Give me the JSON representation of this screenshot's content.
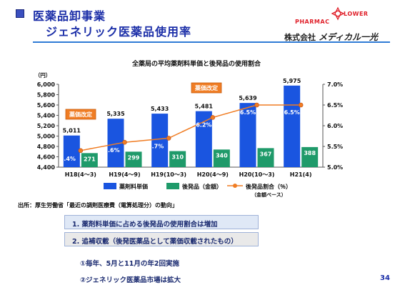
{
  "header": {
    "title": "医薬品卸事業",
    "subtitle": "ジェネリック医薬品使用率",
    "logo_left": "PHARMAC",
    "logo_right": "LOWER",
    "company_prefix": "株式会社",
    "company_name": "メディカル一光"
  },
  "chart_data": {
    "type": "bar",
    "title": "全薬局の平均薬剤料単価と後発品の使用割合",
    "y_unit_label": "（円）",
    "categories": [
      "H18(4～3)",
      "H19(4～9)",
      "H19(10～3)",
      "H20(4～9)",
      "H20(10～3)",
      "H21(4)"
    ],
    "ylim_left": [
      4400,
      6000
    ],
    "left_ticks": [
      "6,000",
      "5,800",
      "5,600",
      "5,400",
      "5,200",
      "5,000",
      "4,800",
      "4,600",
      "4,400"
    ],
    "ylim_right": [
      5.0,
      7.0
    ],
    "right_ticks": [
      "7.0%",
      "6.5%",
      "6.0%",
      "5.5%",
      "5.0%"
    ],
    "series": [
      {
        "name": "薬剤料単価",
        "type": "bar",
        "axis": "left",
        "color": "#1a55e0",
        "values": [
          5011,
          5335,
          5433,
          5481,
          5639,
          5975
        ],
        "labels": [
          "5,011",
          "5,335",
          "5,433",
          "5,481",
          "5,639",
          "5,975"
        ]
      },
      {
        "name": "後発品（金額）",
        "type": "bar",
        "axis": "left",
        "color": "#1f9a6a",
        "values": [
          271,
          299,
          310,
          340,
          367,
          388
        ],
        "labels": [
          "271",
          "299",
          "310",
          "340",
          "367",
          "388"
        ]
      },
      {
        "name": "後発品割合（％）",
        "legend_sub": "（金額ベース）",
        "type": "line",
        "axis": "right",
        "color": "#f07d24",
        "values": [
          5.4,
          5.6,
          5.7,
          6.2,
          6.5,
          6.5
        ],
        "labels": [
          "5.4%",
          "5.6%",
          "5.7%",
          "6.2%",
          "6.5%",
          "6.5%"
        ]
      }
    ],
    "annotations": [
      "薬価改定",
      "薬価改定"
    ]
  },
  "source_note": "出所：厚生労働省「最近の調剤医療費（電算処理分）の動向」",
  "points": [
    "1. 薬剤料単価に占める後発品の使用割合は増加",
    "2. 追補収載（後発医薬品として薬価収載されたもの）"
  ],
  "subpoints": [
    "①毎年、5月と11月の年2回実施",
    "②ジェネリック医薬品市場は拡大"
  ],
  "page_number": "34"
}
